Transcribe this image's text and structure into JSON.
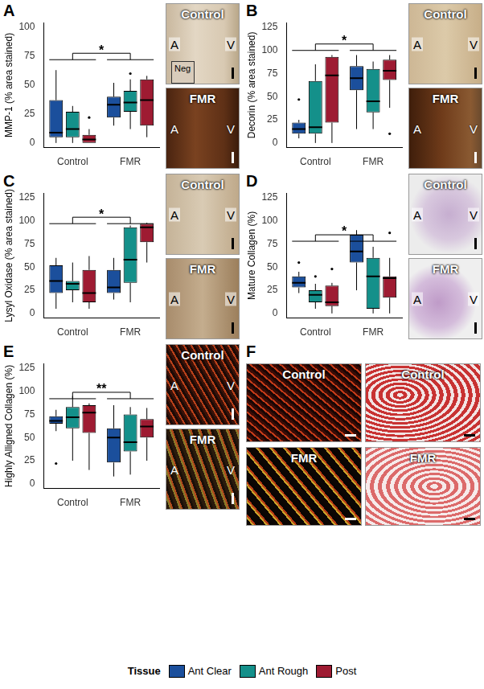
{
  "legend_title": "Tissue",
  "tissues": [
    {
      "name": "Ant Clear",
      "color": "#1b4f9c"
    },
    {
      "name": "Ant Rough",
      "color": "#14908a"
    },
    {
      "name": "Post",
      "color": "#9e1b32"
    }
  ],
  "chart_data": [
    {
      "panel": "A",
      "type": "boxplot",
      "y_label": "MMP-1 (% area stained)",
      "categories": [
        "Control",
        "FMR"
      ],
      "ylim": [
        -4,
        104
      ],
      "yticks": [
        0,
        25,
        50,
        75,
        100
      ],
      "grid": false,
      "significance": {
        "label": "*",
        "y": 72
      },
      "series": [
        {
          "name": "Ant Clear",
          "values": [
            {
              "min": 0,
              "q1": 5,
              "median": 9,
              "q3": 37,
              "max": 63,
              "outliers": []
            },
            {
              "min": 15,
              "q1": 22,
              "median": 33,
              "q3": 40,
              "max": 52,
              "outliers": []
            }
          ]
        },
        {
          "name": "Ant Rough",
          "values": [
            {
              "min": 0,
              "q1": 5,
              "median": 12,
              "q3": 27,
              "max": 32,
              "outliers": []
            },
            {
              "min": 12,
              "q1": 27,
              "median": 35,
              "q3": 45,
              "max": 55,
              "outliers": [
                60
              ]
            }
          ]
        },
        {
          "name": "Post",
          "values": [
            {
              "min": 0,
              "q1": 0,
              "median": 3,
              "q3": 7,
              "max": 12,
              "outliers": [
                22
              ]
            },
            {
              "min": 5,
              "q1": 15,
              "median": 37,
              "q3": 55,
              "max": 58,
              "outliers": []
            }
          ]
        }
      ]
    },
    {
      "panel": "B",
      "type": "boxplot",
      "y_label": "Decorin (% area stained)",
      "categories": [
        "Control",
        "FMR"
      ],
      "ylim": [
        -5,
        130
      ],
      "yticks": [
        0,
        25,
        50,
        75,
        100,
        125
      ],
      "grid": false,
      "significance": {
        "label": "*",
        "y": 100
      },
      "series": [
        {
          "name": "Ant Clear",
          "values": [
            {
              "min": 5,
              "q1": 10,
              "median": 15,
              "q3": 22,
              "max": 25,
              "outliers": [
                47
              ]
            },
            {
              "min": 15,
              "q1": 57,
              "median": 70,
              "q3": 83,
              "max": 95,
              "outliers": []
            }
          ]
        },
        {
          "name": "Ant Rough",
          "values": [
            {
              "min": 0,
              "q1": 10,
              "median": 17,
              "q3": 67,
              "max": 85,
              "outliers": []
            },
            {
              "min": 15,
              "q1": 33,
              "median": 45,
              "q3": 80,
              "max": 88,
              "outliers": []
            }
          ]
        },
        {
          "name": "Post",
          "values": [
            {
              "min": 0,
              "q1": 22,
              "median": 73,
              "q3": 93,
              "max": 95,
              "outliers": []
            },
            {
              "min": 38,
              "q1": 68,
              "median": 78,
              "q3": 90,
              "max": 95,
              "outliers": [
                10
              ]
            }
          ]
        }
      ]
    },
    {
      "panel": "C",
      "type": "boxplot",
      "y_label": "Lysyl Oxidase (% area stained)",
      "categories": [
        "Control",
        "FMR"
      ],
      "ylim": [
        -5,
        130
      ],
      "yticks": [
        0,
        25,
        50,
        75,
        100,
        125
      ],
      "grid": false,
      "significance": {
        "label": "*",
        "y": 97
      },
      "series": [
        {
          "name": "Ant Clear",
          "values": [
            {
              "min": 5,
              "q1": 22,
              "median": 35,
              "q3": 52,
              "max": 60,
              "outliers": []
            },
            {
              "min": 15,
              "q1": 22,
              "median": 28,
              "q3": 47,
              "max": 60,
              "outliers": []
            }
          ]
        },
        {
          "name": "Ant Rough",
          "values": [
            {
              "min": 12,
              "q1": 25,
              "median": 32,
              "q3": 35,
              "max": 55,
              "outliers": []
            },
            {
              "min": 12,
              "q1": 33,
              "median": 58,
              "q3": 93,
              "max": 95,
              "outliers": []
            }
          ]
        },
        {
          "name": "Post",
          "values": [
            {
              "min": 5,
              "q1": 12,
              "median": 22,
              "q3": 47,
              "max": 62,
              "outliers": []
            },
            {
              "min": 55,
              "q1": 77,
              "median": 93,
              "q3": 97,
              "max": 98,
              "outliers": []
            }
          ]
        }
      ]
    },
    {
      "panel": "D",
      "type": "boxplot",
      "y_label": "Mature Collagen (%)",
      "categories": [
        "Control",
        "FMR"
      ],
      "ylim": [
        -5,
        130
      ],
      "yticks": [
        0,
        25,
        50,
        75,
        100,
        125
      ],
      "grid": false,
      "significance": {
        "label": "*",
        "y": 78
      },
      "series": [
        {
          "name": "Ant Clear",
          "values": [
            {
              "min": 22,
              "q1": 28,
              "median": 33,
              "q3": 40,
              "max": 45,
              "outliers": [
                55
              ]
            },
            {
              "min": 25,
              "q1": 55,
              "median": 67,
              "q3": 85,
              "max": 90,
              "outliers": []
            }
          ]
        },
        {
          "name": "Ant Rough",
          "values": [
            {
              "min": 5,
              "q1": 12,
              "median": 20,
              "q3": 25,
              "max": 32,
              "outliers": [
                40
              ]
            },
            {
              "min": 0,
              "q1": 5,
              "median": 40,
              "q3": 60,
              "max": 72,
              "outliers": []
            }
          ]
        },
        {
          "name": "Post",
          "values": [
            {
              "min": 0,
              "q1": 8,
              "median": 12,
              "q3": 30,
              "max": 33,
              "outliers": [
                48
              ]
            },
            {
              "min": 0,
              "q1": 17,
              "median": 38,
              "q3": 40,
              "max": 60,
              "outliers": [
                87
              ]
            }
          ]
        }
      ]
    },
    {
      "panel": "E",
      "type": "boxplot",
      "y_label": "Highly Alligned Collagen (%)",
      "categories": [
        "Control",
        "FMR"
      ],
      "ylim": [
        -5,
        130
      ],
      "yticks": [
        0,
        25,
        50,
        75,
        100,
        125
      ],
      "grid": false,
      "significance": {
        "label": "**",
        "y": 92
      },
      "series": [
        {
          "name": "Ant Clear",
          "values": [
            {
              "min": 57,
              "q1": 65,
              "median": 68,
              "q3": 73,
              "max": 80,
              "outliers": [
                22
              ]
            },
            {
              "min": 8,
              "q1": 23,
              "median": 50,
              "q3": 60,
              "max": 85,
              "outliers": []
            }
          ]
        },
        {
          "name": "Ant Rough",
          "values": [
            {
              "min": 25,
              "q1": 60,
              "median": 72,
              "q3": 83,
              "max": 95,
              "outliers": []
            },
            {
              "min": 10,
              "q1": 35,
              "median": 45,
              "q3": 75,
              "max": 83,
              "outliers": []
            }
          ]
        },
        {
          "name": "Post",
          "values": [
            {
              "min": 15,
              "q1": 55,
              "median": 77,
              "q3": 85,
              "max": 87,
              "outliers": []
            },
            {
              "min": 25,
              "q1": 50,
              "median": 62,
              "q3": 70,
              "max": 82,
              "outliers": []
            }
          ]
        }
      ]
    }
  ],
  "micrographs": [
    {
      "panel": "A",
      "images": [
        {
          "label": "Control",
          "left": "A",
          "right": "V",
          "inset": "Neg"
        },
        {
          "label": "FMR",
          "left": "A",
          "right": "V"
        }
      ]
    },
    {
      "panel": "B",
      "images": [
        {
          "label": "Control",
          "left": "A",
          "right": "V"
        },
        {
          "label": "FMR",
          "left": "A",
          "right": "V"
        }
      ]
    },
    {
      "panel": "C",
      "images": [
        {
          "label": "Control",
          "left": "A",
          "right": "V"
        },
        {
          "label": "FMR",
          "left": "A",
          "right": "V"
        }
      ]
    },
    {
      "panel": "D",
      "images": [
        {
          "label": "Control",
          "left": "A",
          "right": "V"
        },
        {
          "label": "FMR",
          "left": "A",
          "right": "V"
        }
      ]
    },
    {
      "panel": "E",
      "images": [
        {
          "label": "Control",
          "left": "A",
          "right": "V"
        },
        {
          "label": "FMR",
          "left": "A",
          "right": "V"
        }
      ]
    },
    {
      "panel": "F",
      "images": [
        {
          "label": "Control"
        },
        {
          "label": "Control"
        },
        {
          "label": "FMR"
        },
        {
          "label": "FMR"
        }
      ]
    }
  ]
}
